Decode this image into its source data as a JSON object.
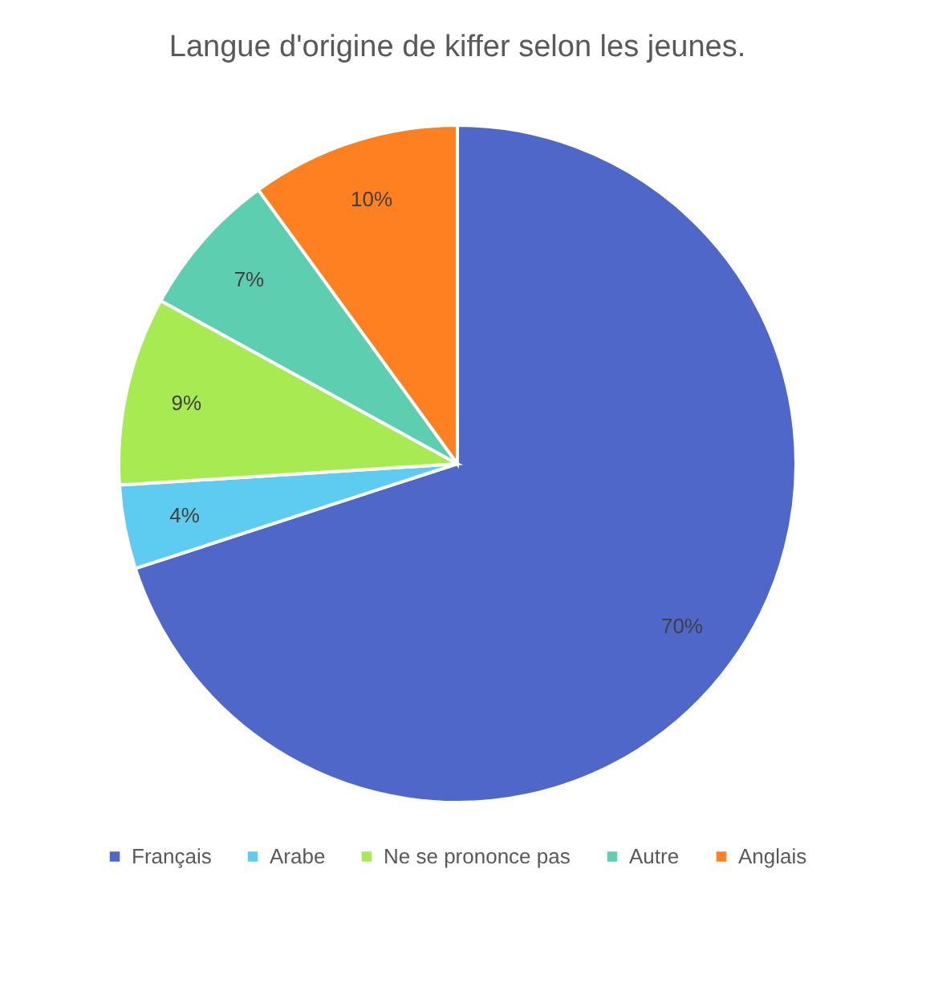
{
  "chart_data": {
    "type": "pie",
    "title": "Langue d'origine de kiffer selon les jeunes.",
    "categories": [
      "Français",
      "Arabe",
      "Ne se prononce pas",
      "Autre",
      "Anglais"
    ],
    "values": [
      70,
      4,
      9,
      7,
      10
    ],
    "colors": [
      "#4e67c8",
      "#5ecbf0",
      "#a7ea52",
      "#5dceaf",
      "#ff8021"
    ],
    "value_labels": [
      "70%",
      "4%",
      "9%",
      "7%",
      "10%"
    ],
    "legend": "bottom"
  }
}
